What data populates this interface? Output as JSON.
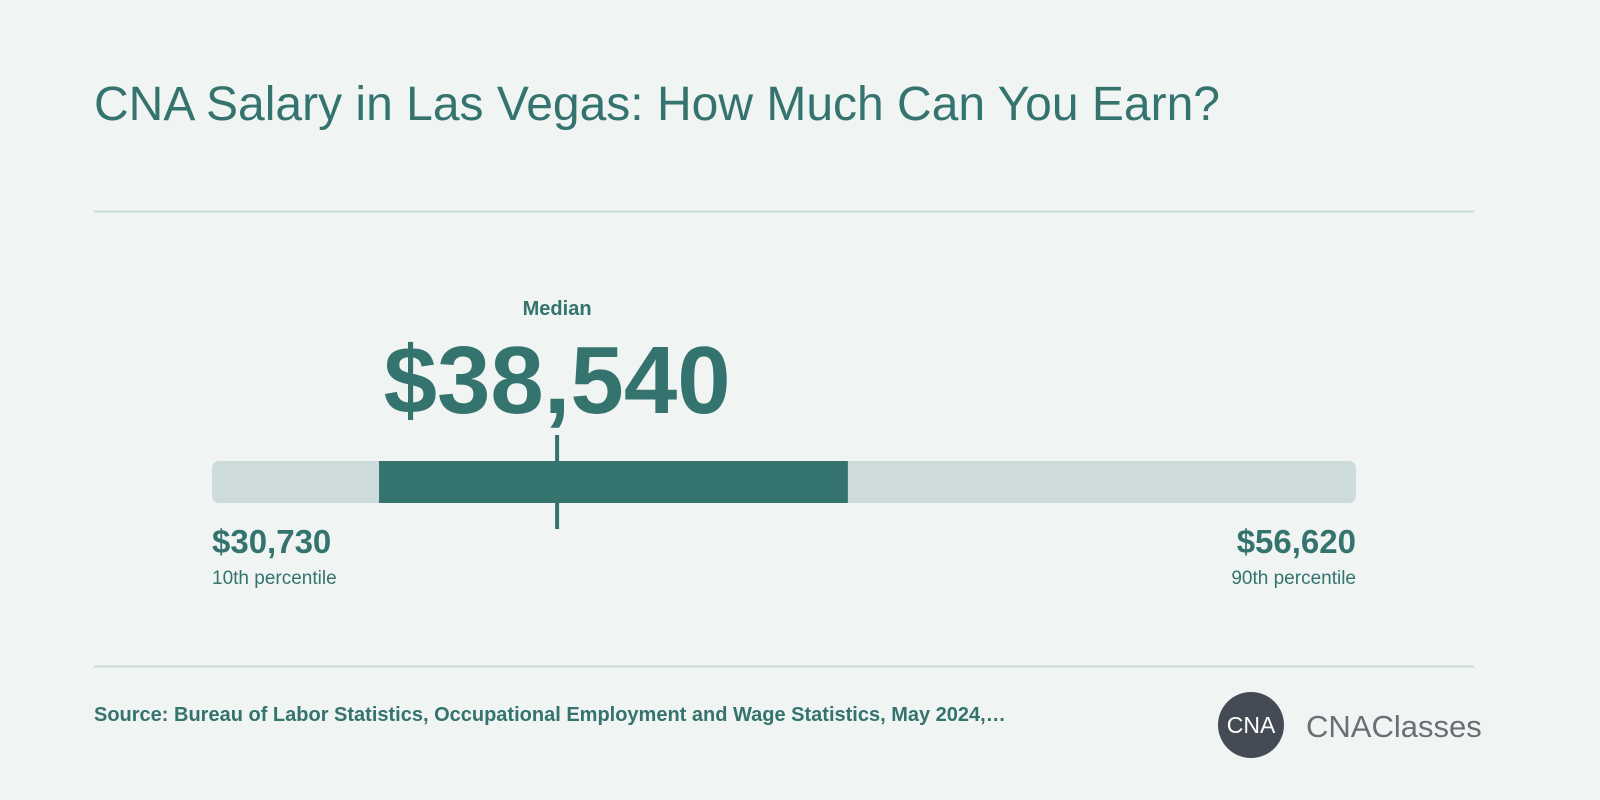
{
  "chart_data": {
    "type": "range",
    "title": "CNA Salary in Las Vegas: How Much Can You Earn?",
    "median": {
      "label": "Median",
      "value": 38540,
      "value_label": "$38,540"
    },
    "low": {
      "value": 30730,
      "value_label": "$30,730",
      "label": "10th percentile"
    },
    "high": {
      "value": 56620,
      "value_label": "$56,620",
      "label": "90th percentile"
    },
    "band": [
      34510,
      45120
    ],
    "colors": {
      "track": "#cddcdb",
      "band": "#34736e",
      "text": "#34736e"
    },
    "source": "Source: Bureau of Labor Statistics, Occupational Employment and Wage Statistics, May 2024,…",
    "logo": {
      "mark": "CNA",
      "name": "CNAClasses"
    }
  }
}
